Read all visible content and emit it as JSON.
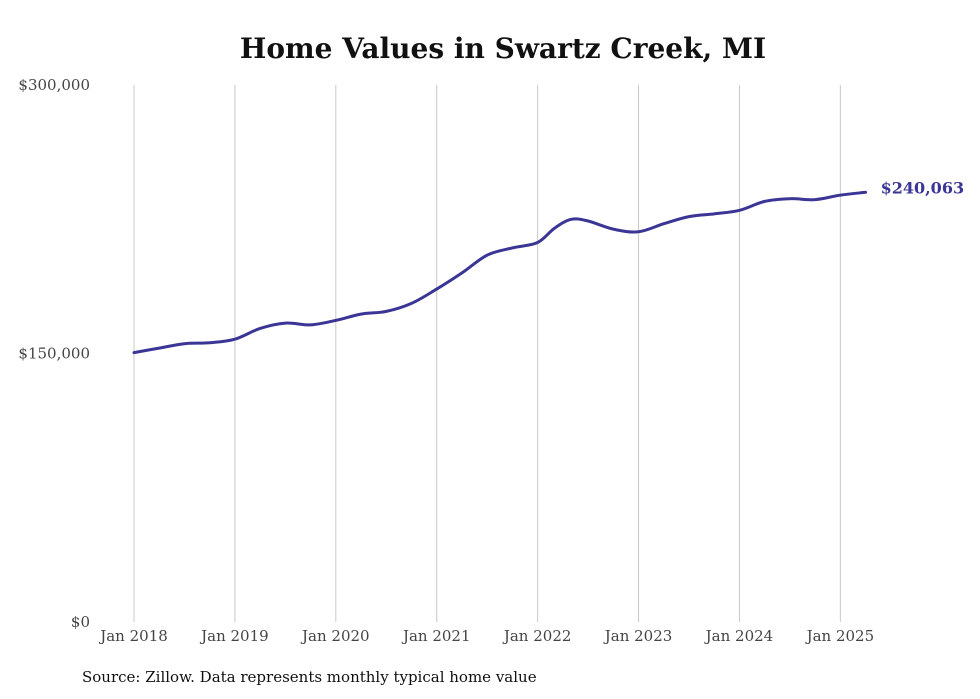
{
  "chart_data": {
    "type": "line",
    "title": "Home Values in Swartz Creek, MI",
    "xlabel": "",
    "ylabel": "",
    "source_note": "Source: Zillow. Data represents monthly typical home value",
    "ylim": [
      0,
      300000
    ],
    "y_ticks": [
      {
        "value": 0,
        "label": "$0"
      },
      {
        "value": 150000,
        "label": "$150,000"
      },
      {
        "value": 300000,
        "label": "$300,000"
      }
    ],
    "x_ticks": [
      {
        "value": "2018-01",
        "label": "Jan 2018"
      },
      {
        "value": "2019-01",
        "label": "Jan 2019"
      },
      {
        "value": "2020-01",
        "label": "Jan 2020"
      },
      {
        "value": "2021-01",
        "label": "Jan 2021"
      },
      {
        "value": "2022-01",
        "label": "Jan 2022"
      },
      {
        "value": "2023-01",
        "label": "Jan 2023"
      },
      {
        "value": "2024-01",
        "label": "Jan 2024"
      },
      {
        "value": "2025-01",
        "label": "Jan 2025"
      }
    ],
    "grid": "vertical",
    "line_color": "#3b3595",
    "end_label": "$240,063",
    "series": [
      {
        "x": [
          "2018-01",
          "2018-04",
          "2018-07",
          "2018-10",
          "2019-01",
          "2019-04",
          "2019-07",
          "2019-10",
          "2020-01",
          "2020-04",
          "2020-07",
          "2020-10",
          "2021-01",
          "2021-04",
          "2021-07",
          "2021-10",
          "2022-01",
          "2022-03",
          "2022-05",
          "2022-07",
          "2022-10",
          "2023-01",
          "2023-04",
          "2023-07",
          "2023-10",
          "2024-01",
          "2024-04",
          "2024-07",
          "2024-10",
          "2025-01",
          "2025-04"
        ],
        "values": [
          150500,
          153000,
          155500,
          156000,
          158000,
          164000,
          167000,
          166000,
          168500,
          172000,
          173500,
          178000,
          186000,
          195000,
          205000,
          209000,
          212000,
          220000,
          225000,
          224000,
          219500,
          218000,
          222500,
          226500,
          228000,
          230000,
          235000,
          236500,
          236000,
          238500,
          240063
        ]
      }
    ]
  }
}
